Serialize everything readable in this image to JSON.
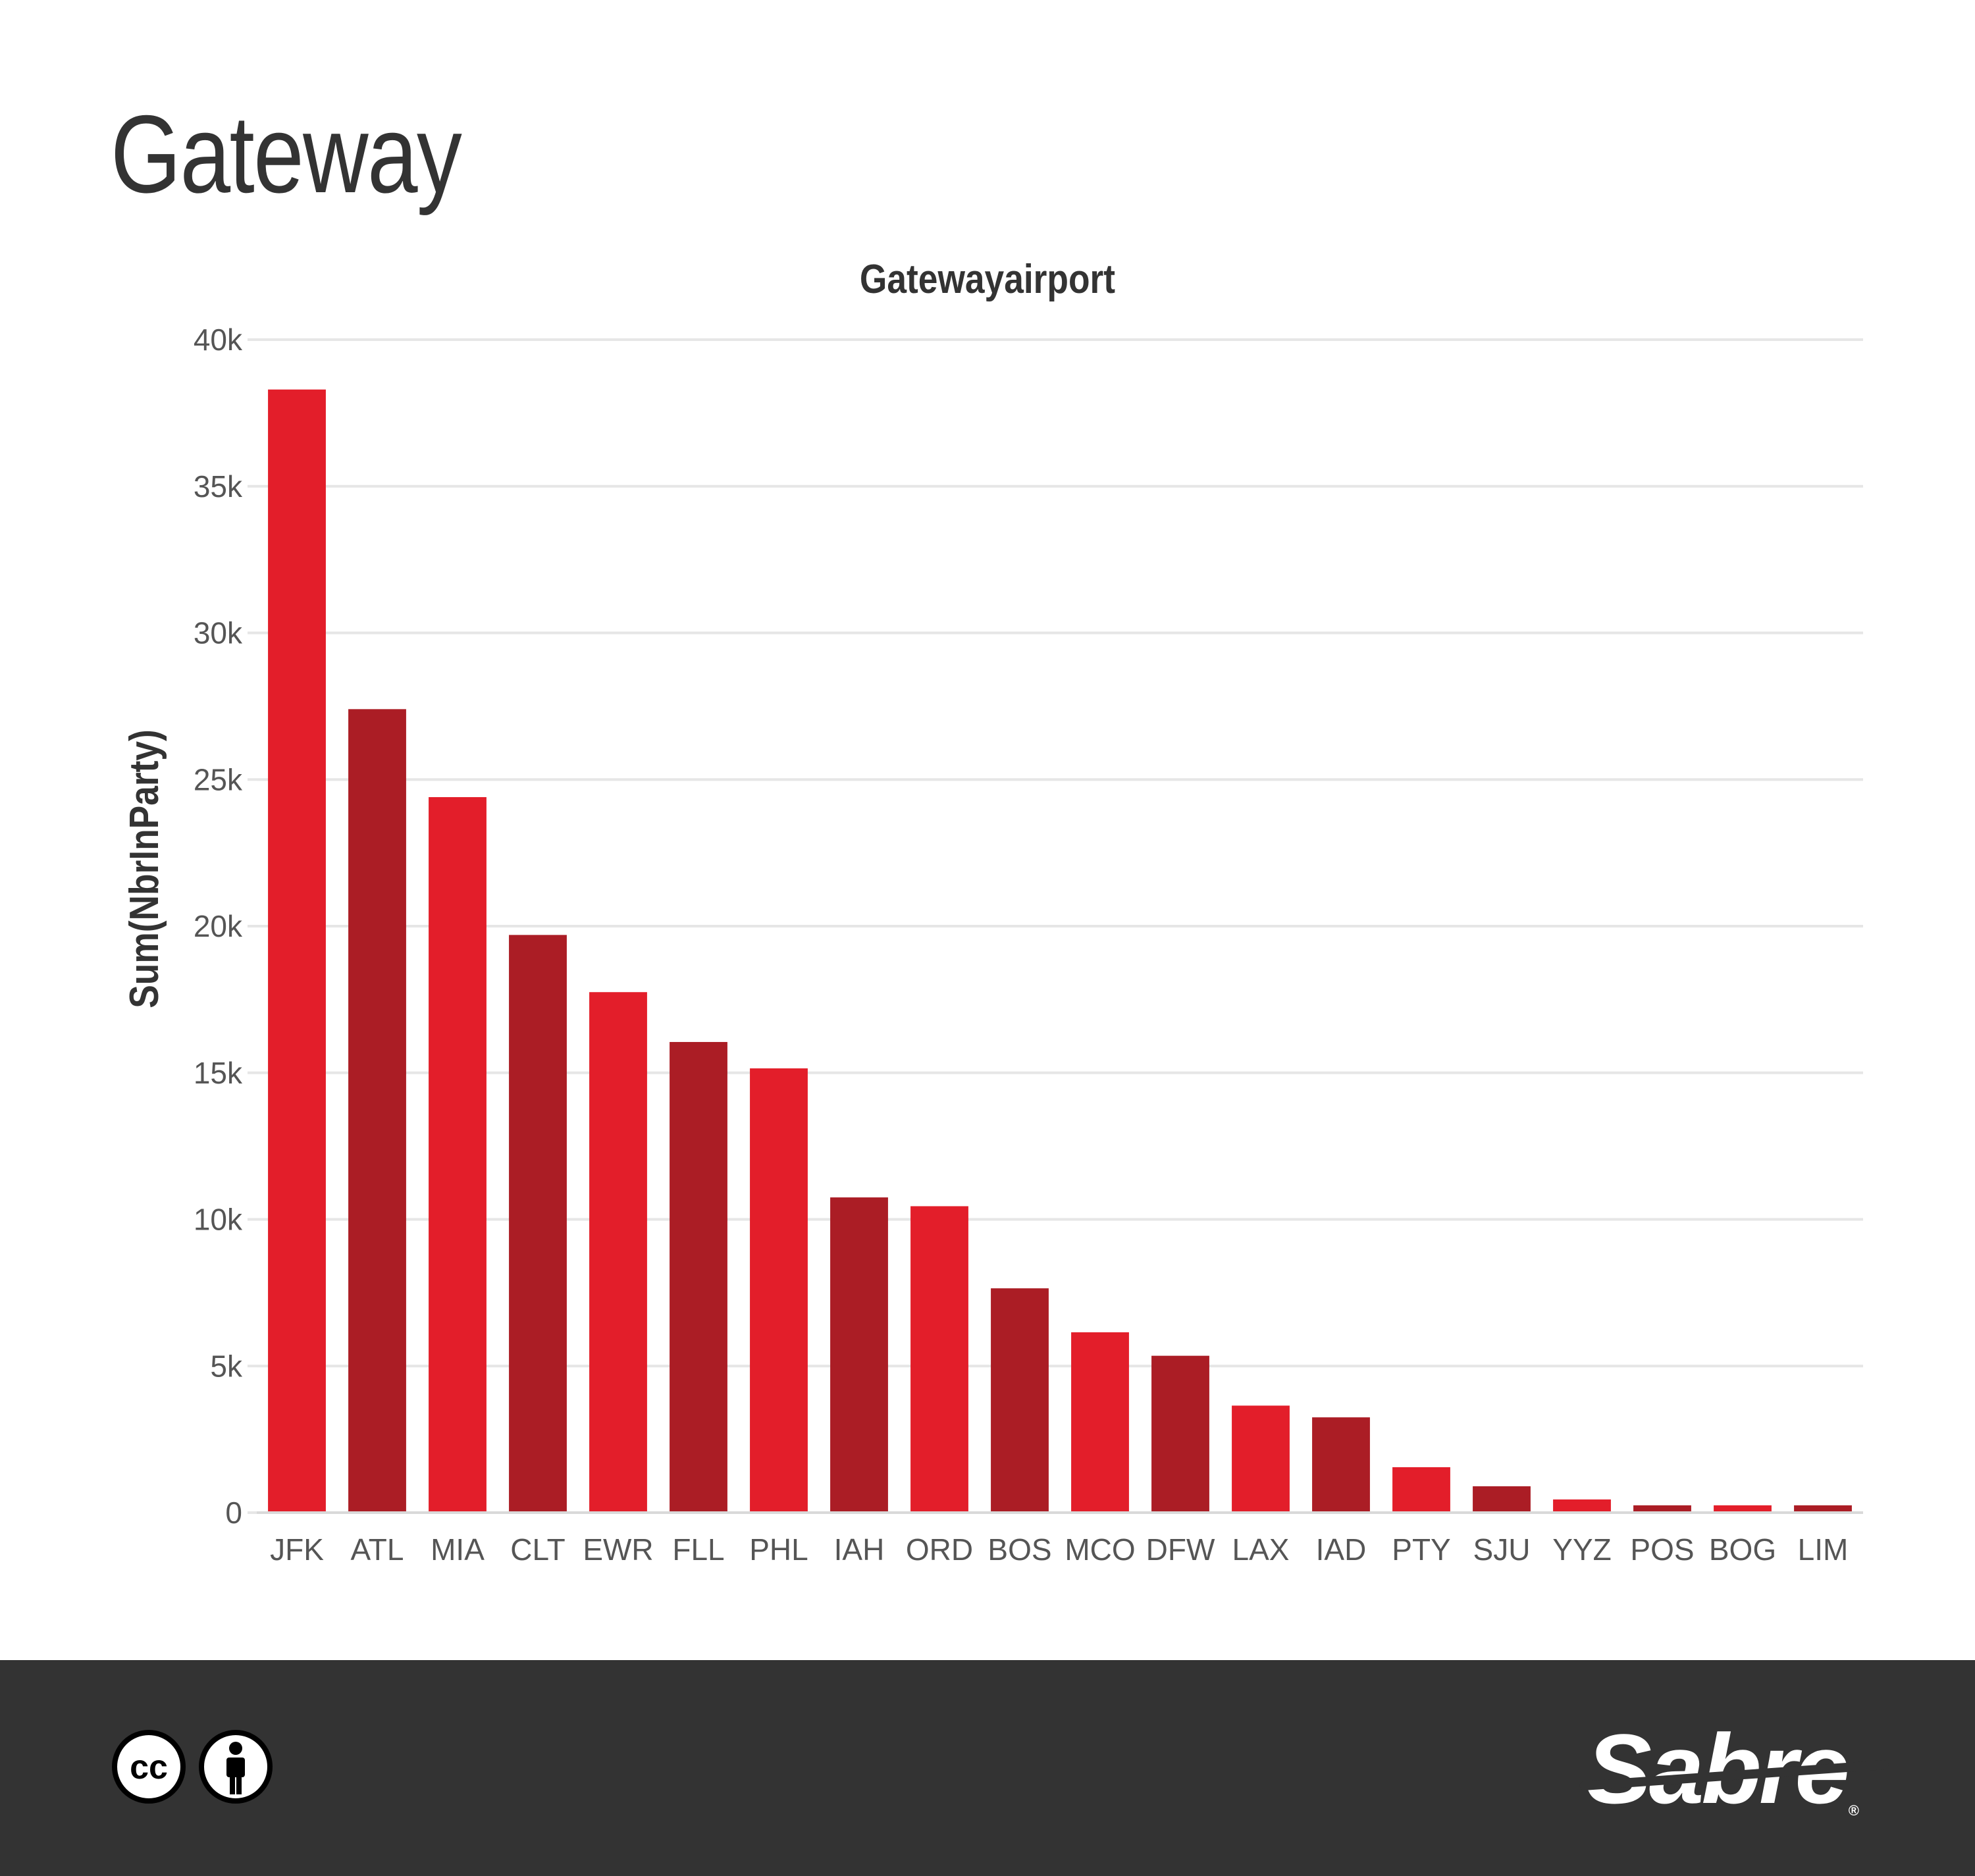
{
  "page": {
    "title": "Gateway"
  },
  "chart_data": {
    "type": "bar",
    "title": "Gatewayairport",
    "xlabel": "",
    "ylabel": "Sum(NbrInParty)",
    "categories": [
      "JFK",
      "ATL",
      "MIA",
      "CLT",
      "EWR",
      "FLL",
      "PHL",
      "IAH",
      "ORD",
      "BOS",
      "MCO",
      "DFW",
      "LAX",
      "IAD",
      "PTY",
      "SJU",
      "YYZ",
      "POS",
      "BOG",
      "LIM"
    ],
    "values": [
      38300,
      27400,
      24400,
      19700,
      17750,
      16050,
      15150,
      10750,
      10450,
      7650,
      6150,
      5350,
      3650,
      3250,
      1550,
      900,
      450,
      250,
      250,
      250
    ],
    "ylim": [
      0,
      40000
    ],
    "yticks": [
      0,
      5000,
      10000,
      15000,
      20000,
      25000,
      30000,
      35000,
      40000
    ],
    "ytick_labels": [
      "0",
      "5k",
      "10k",
      "15k",
      "20k",
      "25k",
      "30k",
      "35k",
      "40k"
    ],
    "grid": true,
    "colors": [
      "#e31e2a",
      "#ab1d25"
    ],
    "gridline_color": "#e6e6e6",
    "axis_text_color": "#555555"
  },
  "footer": {
    "background": "#333333",
    "badges": [
      {
        "icon": "cc-icon",
        "text": "cc"
      },
      {
        "icon": "attribution-person-icon"
      }
    ],
    "logo": {
      "text": "Sabre",
      "mark": "®"
    }
  }
}
